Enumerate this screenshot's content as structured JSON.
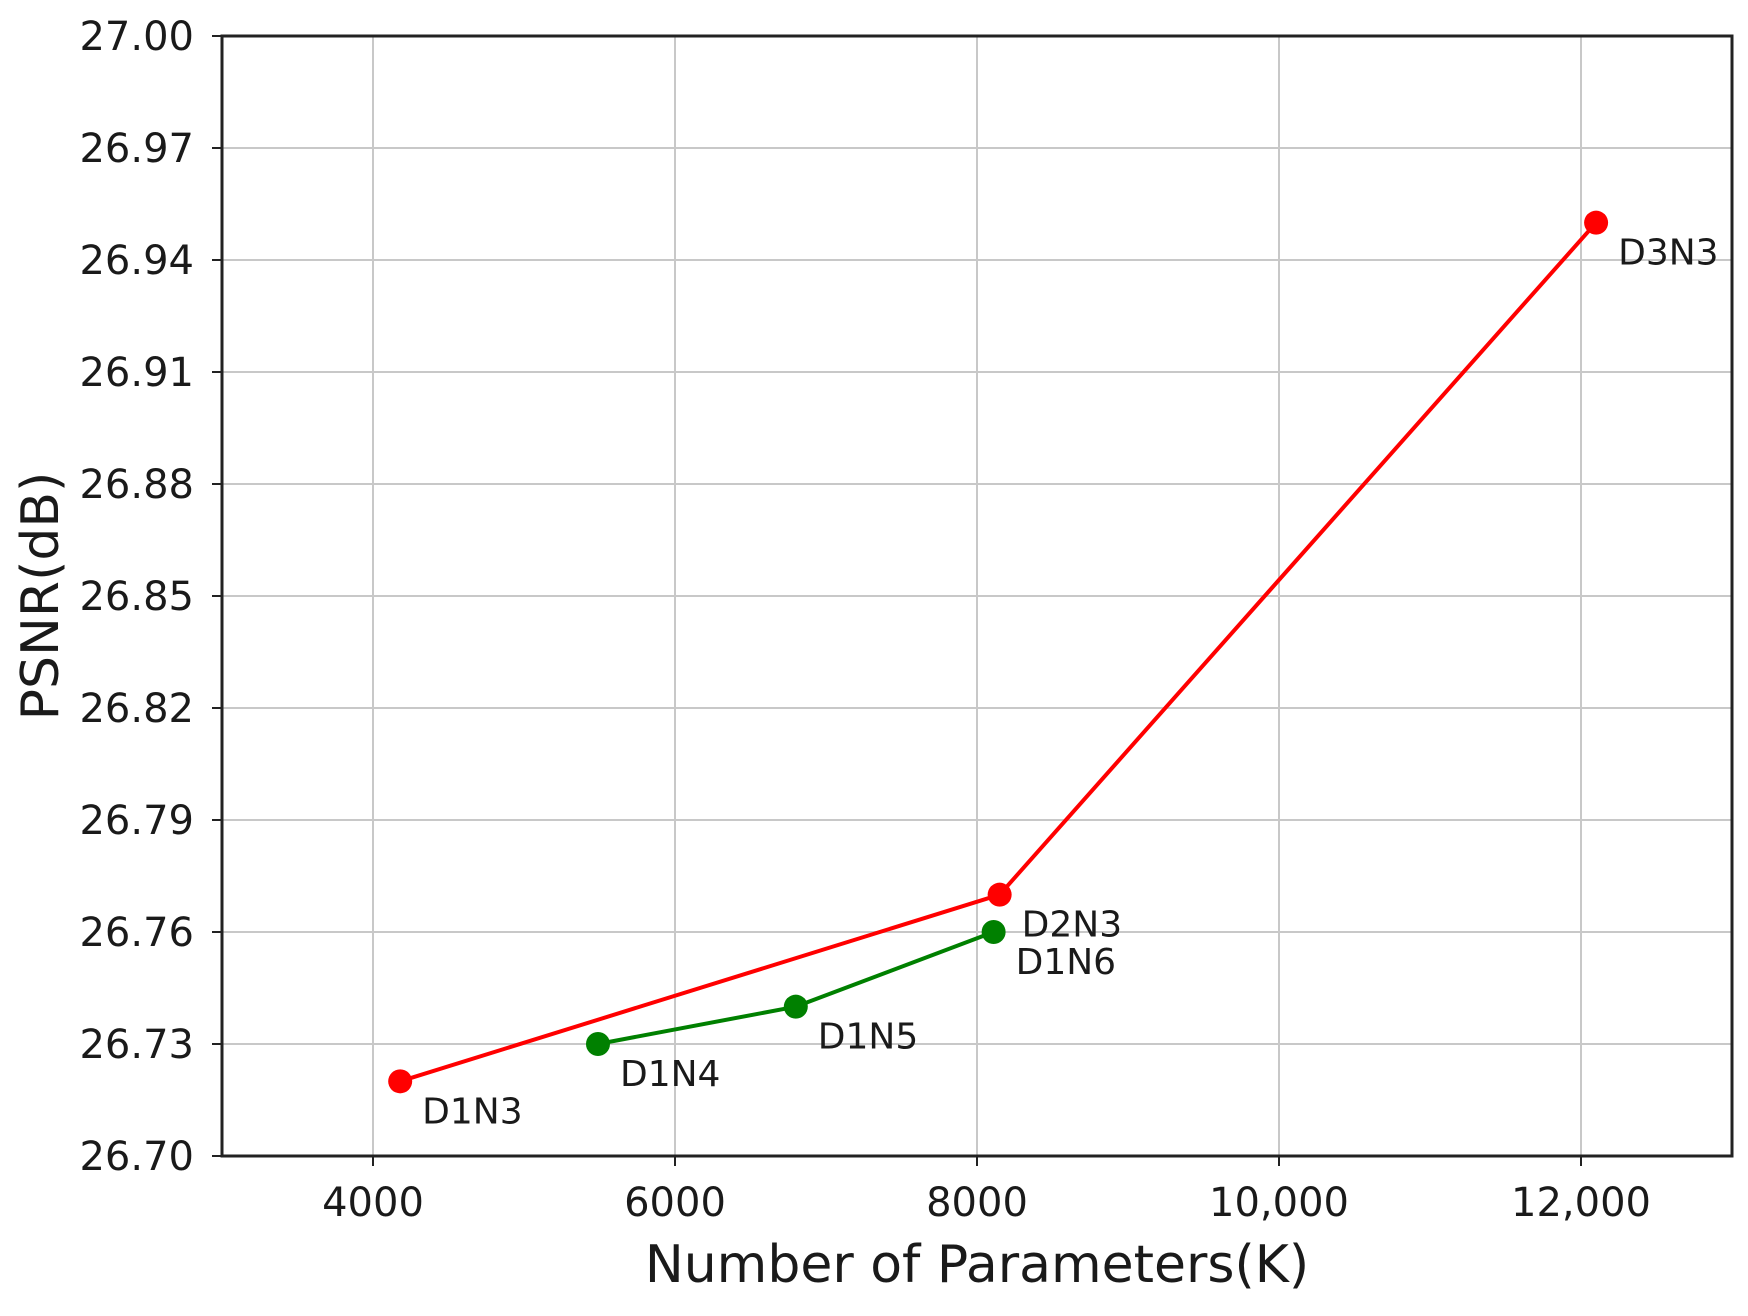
{
  "chart_data": {
    "type": "line",
    "title": "",
    "xlabel": "Number of Parameters(K)",
    "ylabel": "PSNR(dB)",
    "xlim": [
      3000,
      13000
    ],
    "ylim": [
      26.7,
      27.0
    ],
    "x_ticks": [
      4000,
      6000,
      8000,
      10000,
      12000
    ],
    "x_tick_labels": [
      "4000",
      "6000",
      "8000",
      "10,000",
      "12,000"
    ],
    "y_ticks": [
      26.7,
      26.73,
      26.76,
      26.79,
      26.82,
      26.85,
      26.88,
      26.91,
      26.94,
      26.97,
      27.0
    ],
    "y_tick_labels": [
      "26.70",
      "26.73",
      "26.76",
      "26.79",
      "26.82",
      "26.85",
      "26.88",
      "26.91",
      "26.94",
      "26.97",
      "27.00"
    ],
    "grid": true,
    "series": [
      {
        "color": "#ff0000",
        "points": [
          {
            "x": 4180,
            "y": 26.72,
            "label": "D1N3"
          },
          {
            "x": 8150,
            "y": 26.77,
            "label": "D2N3"
          },
          {
            "x": 12100,
            "y": 26.95,
            "label": "D3N3"
          }
        ]
      },
      {
        "color": "#008000",
        "points": [
          {
            "x": 5490,
            "y": 26.73,
            "label": "D1N4"
          },
          {
            "x": 6800,
            "y": 26.74,
            "label": "D1N5"
          },
          {
            "x": 8110,
            "y": 26.76,
            "label": "D1N6"
          }
        ]
      }
    ]
  }
}
